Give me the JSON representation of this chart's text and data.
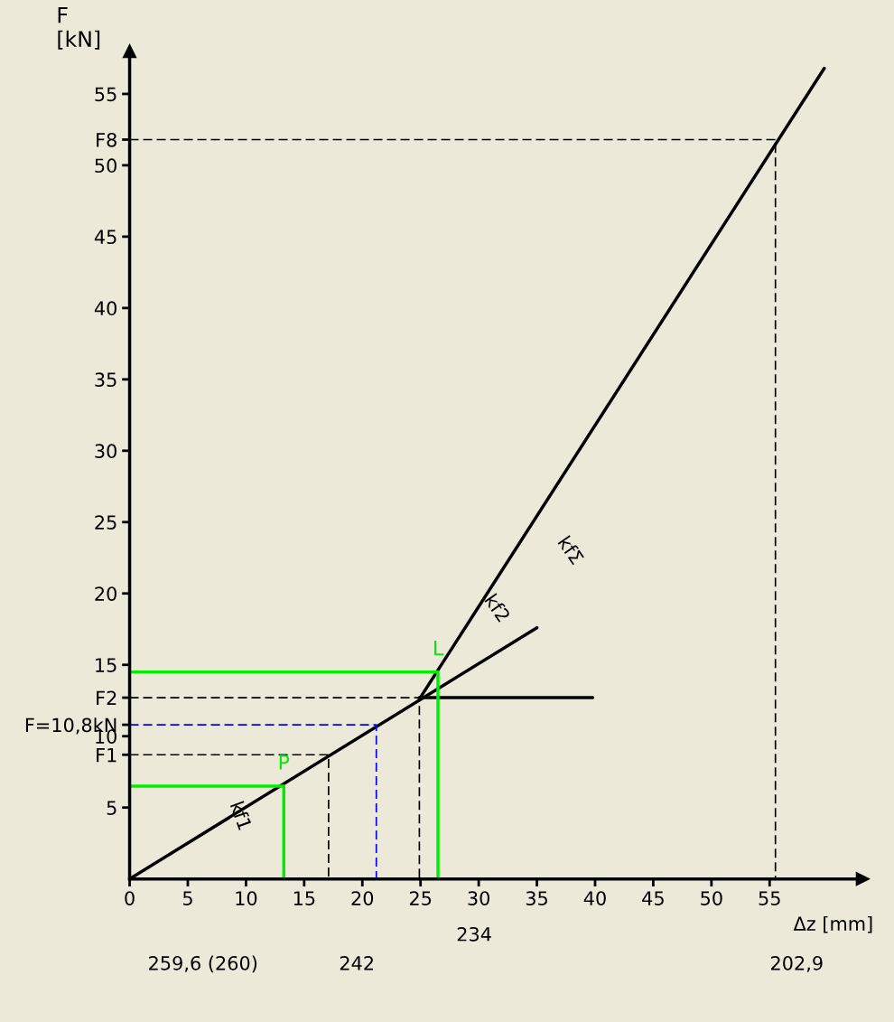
{
  "chart_data": {
    "type": "line",
    "xlabel": "Δz [mm]",
    "ylabel": "F\n[kN]",
    "xlim": [
      0,
      63
    ],
    "ylim": [
      0,
      58
    ],
    "xticks": [
      0,
      5,
      10,
      15,
      20,
      25,
      30,
      35,
      40,
      45,
      50,
      55
    ],
    "yticks": [
      5,
      {
        "value": 8.7,
        "label": "F1"
      },
      10,
      {
        "value": 10.8,
        "label": "F=10,8kN"
      },
      {
        "value": 12.7,
        "label": "F2"
      },
      15,
      20,
      25,
      30,
      35,
      40,
      45,
      50,
      {
        "value": 51.8,
        "label": "F8"
      },
      55
    ],
    "grid": false,
    "legend": false,
    "marker": "none",
    "series": [
      {
        "x": [
          0,
          35
        ],
        "values": [
          0,
          17.6
        ],
        "color": "#000000",
        "line_style": "solid"
      },
      {
        "x": [
          24.9,
          59.7
        ],
        "values": [
          12.6,
          56.8
        ],
        "color": "#000000",
        "line_style": "solid"
      },
      {
        "x": [
          24.9,
          39.8
        ],
        "values": [
          12.7,
          12.7
        ],
        "color": "#000000",
        "line_style": "solid"
      },
      {
        "x": [
          0,
          13.25,
          13.25
        ],
        "values": [
          6.5,
          6.5,
          0
        ],
        "color": "#00ee00",
        "line_style": "solid"
      },
      {
        "x": [
          0,
          26.5,
          26.5
        ],
        "values": [
          14.5,
          14.5,
          0
        ],
        "color": "#00ee00",
        "line_style": "solid"
      },
      {
        "x": [
          0,
          17.1,
          17.1
        ],
        "values": [
          8.7,
          8.7,
          0
        ],
        "color": "#000000",
        "line_style": "dashed"
      },
      {
        "x": [
          0,
          21.2,
          21.2
        ],
        "values": [
          10.8,
          10.8,
          0
        ],
        "color": "#0000ff",
        "line_style": "dashed"
      },
      {
        "x": [
          0,
          24.9,
          24.9
        ],
        "values": [
          12.7,
          12.7,
          0
        ],
        "color": "#000000",
        "line_style": "dashed"
      },
      {
        "x": [
          0,
          55.5,
          55.5
        ],
        "values": [
          51.8,
          51.8,
          0
        ],
        "color": "#000000",
        "line_style": "dashed"
      }
    ],
    "annotations": [
      {
        "text": "P",
        "x": 13.25,
        "y": 6.5
      },
      {
        "text": "L",
        "x": 26.5,
        "y": 14.5
      },
      "kf1",
      "kf2",
      "kfΣ",
      "259,6 (260)",
      "242",
      "234",
      "202,9"
    ]
  }
}
